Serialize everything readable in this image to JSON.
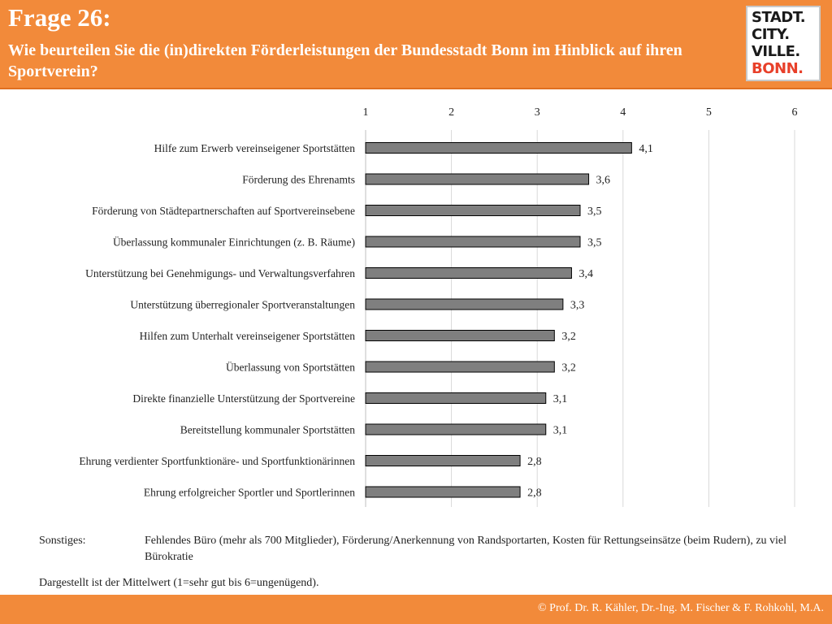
{
  "header": {
    "title": "Frage 26:",
    "subtitle": "Wie beurteilen Sie die (in)direkten Förderleistungen der Bundesstadt Bonn im Hinblick auf ihren Sportverein?",
    "logo": {
      "line1": "STADT.",
      "line2": "CITY.",
      "line3": "VILLE.",
      "line4": "BONN."
    }
  },
  "chart_data": {
    "type": "bar",
    "orientation": "horizontal",
    "categories": [
      "Hilfe zum Erwerb vereinseigener Sportstätten",
      "Förderung des Ehrenamts",
      "Förderung von Städtepartnerschaften auf Sportvereinsebene",
      "Überlassung kommunaler Einrichtungen (z. B. Räume)",
      "Unterstützung bei Genehmigungs- und Verwaltungsverfahren",
      "Unterstützung überregionaler Sportveranstaltungen",
      "Hilfen zum Unterhalt vereinseigener Sportstätten",
      "Überlassung von Sportstätten",
      "Direkte finanzielle Unterstützung der Sportvereine",
      "Bereitstellung kommunaler Sportstätten",
      "Ehrung verdienter Sportfunktionäre- und Sportfunktionärinnen",
      "Ehrung erfolgreicher Sportler und Sportlerinnen"
    ],
    "values": [
      4.1,
      3.6,
      3.5,
      3.5,
      3.4,
      3.3,
      3.2,
      3.2,
      3.1,
      3.1,
      2.8,
      2.8
    ],
    "value_labels": [
      "4,1",
      "3,6",
      "3,5",
      "3,5",
      "3,4",
      "3,3",
      "3,2",
      "3,2",
      "3,1",
      "3,1",
      "2,8",
      "2,8"
    ],
    "xlim": [
      1,
      6
    ],
    "xticks": [
      "1",
      "2",
      "3",
      "4",
      "5",
      "6"
    ],
    "axis_position": "top",
    "grid": true,
    "bar_color": "#7f7f7f"
  },
  "notes": {
    "label": "Sonstiges:",
    "text": "Fehlendes Büro (mehr als 700 Mitglieder), Förderung/Anerkennung von Randsportarten, Kosten für Rettungseinsätze (beim Rudern), zu viel Bürokratie",
    "footnote": "Dargestellt ist der Mittelwert (1=sehr gut bis 6=ungenügend)."
  },
  "footer": {
    "text": "© Prof. Dr. R. Kähler, Dr.-Ing. M. Fischer & F. Rohkohl, M.A."
  }
}
